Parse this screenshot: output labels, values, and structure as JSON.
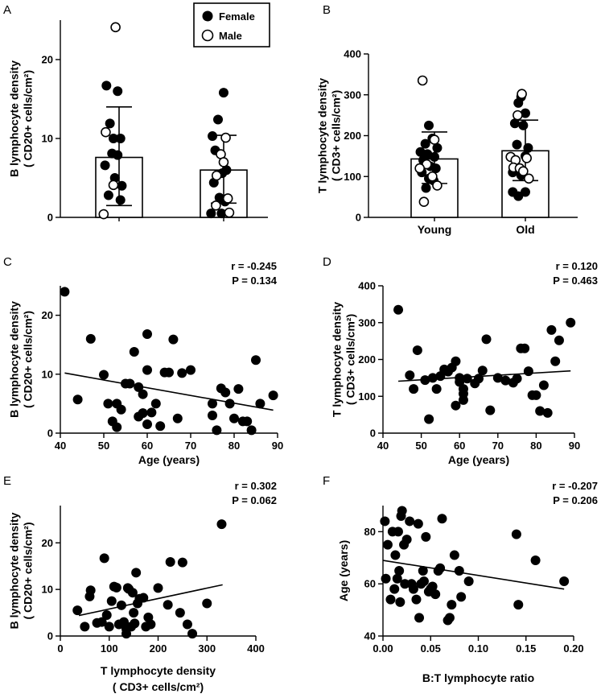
{
  "legend": {
    "female": "Female",
    "male": "Male"
  },
  "chart_data": [
    {
      "panel": "A",
      "type": "bar",
      "ylabel": [
        "B lymphocyte density",
        "( CD20+ cells/cm²)"
      ],
      "ylim": [
        0,
        25
      ],
      "yticks": [
        0,
        10,
        20
      ],
      "categories": [
        "",
        ""
      ],
      "means": [
        7.6,
        6.0
      ],
      "sd": [
        [
          1.5,
          14.0
        ],
        [
          1.8,
          10.4
        ]
      ],
      "female_points": [
        [
          [
            0.4,
            16.7
          ],
          [
            0.45,
            11.9
          ],
          [
            0.5,
            10.0
          ],
          [
            0.56,
            16.0
          ],
          [
            0.6,
            10.0
          ],
          [
            0.48,
            8.1
          ],
          [
            0.56,
            7.9
          ],
          [
            0.38,
            6.6
          ],
          [
            0.52,
            5.0
          ],
          [
            0.62,
            4.0
          ],
          [
            0.43,
            2.8
          ],
          [
            0.6,
            2.2
          ]
        ],
        [
          [
            0.42,
            10.3
          ],
          [
            0.5,
            12.4
          ],
          [
            0.58,
            15.8
          ],
          [
            0.46,
            8.5
          ],
          [
            0.56,
            5.6
          ],
          [
            0.62,
            6.0
          ],
          [
            0.44,
            4.4
          ],
          [
            0.52,
            2.5
          ],
          [
            0.6,
            2.0
          ],
          [
            0.4,
            0.5
          ],
          [
            0.55,
            0.5
          ]
        ]
      ],
      "male_points": [
        [
          [
            0.53,
            24.1
          ],
          [
            0.39,
            10.8
          ],
          [
            0.5,
            4.1
          ],
          [
            0.36,
            0.4
          ]
        ],
        [
          [
            0.61,
            10.1
          ],
          [
            0.54,
            8.0
          ],
          [
            0.58,
            7.0
          ],
          [
            0.48,
            5.3
          ],
          [
            0.64,
            2.4
          ],
          [
            0.47,
            1.5
          ],
          [
            0.66,
            0.6
          ]
        ]
      ]
    },
    {
      "panel": "B",
      "type": "bar",
      "ylabel": [
        "T lymphocyte density",
        "( CD3+ cells/cm²)"
      ],
      "ylim": [
        0,
        400
      ],
      "yticks": [
        0,
        100,
        200,
        300,
        400
      ],
      "categories": [
        "Young",
        "Old"
      ],
      "means": [
        143,
        163
      ],
      "sd": [
        [
          83,
          209
        ],
        [
          90,
          238
        ]
      ],
      "female_points": [
        [
          [
            0.5,
            225
          ],
          [
            0.45,
            180
          ],
          [
            0.55,
            193
          ],
          [
            0.62,
            170
          ],
          [
            0.38,
            160
          ],
          [
            0.48,
            155
          ],
          [
            0.58,
            148
          ],
          [
            0.42,
            140
          ],
          [
            0.52,
            125
          ],
          [
            0.6,
            120
          ],
          [
            0.4,
            110
          ],
          [
            0.5,
            95
          ],
          [
            0.57,
            90
          ],
          [
            0.46,
            72
          ]
        ],
        [
          [
            0.52,
            295
          ],
          [
            0.48,
            280
          ],
          [
            0.58,
            255
          ],
          [
            0.43,
            230
          ],
          [
            0.55,
            225
          ],
          [
            0.62,
            170
          ],
          [
            0.46,
            178
          ],
          [
            0.58,
            150
          ],
          [
            0.4,
            110
          ],
          [
            0.52,
            103
          ],
          [
            0.4,
            62
          ],
          [
            0.58,
            62
          ],
          [
            0.48,
            52
          ]
        ]
      ],
      "male_points": [
        [
          [
            0.41,
            335
          ],
          [
            0.58,
            190
          ],
          [
            0.47,
            130
          ],
          [
            0.37,
            120
          ],
          [
            0.55,
            100
          ],
          [
            0.62,
            78
          ],
          [
            0.43,
            38
          ]
        ],
        [
          [
            0.53,
            302
          ],
          [
            0.47,
            250
          ],
          [
            0.37,
            148
          ],
          [
            0.44,
            140
          ],
          [
            0.6,
            145
          ],
          [
            0.41,
            122
          ],
          [
            0.5,
            120
          ],
          [
            0.55,
            113
          ],
          [
            0.63,
            95
          ]
        ]
      ]
    },
    {
      "panel": "C",
      "type": "scatter",
      "xlabel": "Age (years)",
      "ylabel": [
        "B lymphocyte density",
        "( CD20+ cells/cm²)"
      ],
      "xlim": [
        40,
        90
      ],
      "ylim": [
        0,
        25
      ],
      "xticks": [
        40,
        50,
        60,
        70,
        80,
        90
      ],
      "yticks": [
        0,
        10,
        20
      ],
      "stats": {
        "r": "r = -0.245",
        "p": "P = 0.134"
      },
      "fit": [
        [
          41,
          10.2
        ],
        [
          89,
          3.9
        ]
      ],
      "points": [
        [
          41,
          24
        ],
        [
          44,
          5.7
        ],
        [
          47,
          16
        ],
        [
          50,
          9.9
        ],
        [
          51,
          5
        ],
        [
          52,
          2
        ],
        [
          53,
          5
        ],
        [
          53,
          1
        ],
        [
          54,
          4
        ],
        [
          55,
          8.4
        ],
        [
          56,
          8.4
        ],
        [
          57,
          13.8
        ],
        [
          58,
          7.8
        ],
        [
          58,
          2.8
        ],
        [
          59,
          6.6
        ],
        [
          59,
          3.4
        ],
        [
          60,
          16.8
        ],
        [
          60,
          10.7
        ],
        [
          60,
          1.5
        ],
        [
          61,
          3.5
        ],
        [
          62,
          5
        ],
        [
          63,
          1.2
        ],
        [
          64,
          10.3
        ],
        [
          65,
          10.3
        ],
        [
          66,
          15.9
        ],
        [
          67,
          2.5
        ],
        [
          68,
          10.2
        ],
        [
          70,
          10.7
        ],
        [
          75,
          5
        ],
        [
          75,
          3
        ],
        [
          76,
          0.5
        ],
        [
          77,
          7.6
        ],
        [
          78,
          6.9
        ],
        [
          79,
          5
        ],
        [
          80,
          2.5
        ],
        [
          81,
          7.5
        ],
        [
          82,
          2
        ],
        [
          83,
          2
        ],
        [
          84,
          0.5
        ],
        [
          85,
          12.4
        ],
        [
          86,
          5
        ],
        [
          89,
          6.4
        ]
      ]
    },
    {
      "panel": "D",
      "type": "scatter",
      "xlabel": "Age (years)",
      "ylabel": [
        "T lymphocyte density",
        "( CD3+ cells/cm²)"
      ],
      "xlim": [
        40,
        90
      ],
      "ylim": [
        0,
        400
      ],
      "xticks": [
        40,
        50,
        60,
        70,
        80,
        90
      ],
      "yticks": [
        0,
        100,
        200,
        300,
        400
      ],
      "stats": {
        "r": "r = 0.120",
        "p": "P = 0.463"
      },
      "fit": [
        [
          44,
          141
        ],
        [
          89,
          169
        ]
      ],
      "points": [
        [
          44,
          335
        ],
        [
          47,
          157
        ],
        [
          48,
          120
        ],
        [
          49,
          225
        ],
        [
          51,
          144
        ],
        [
          52,
          38
        ],
        [
          53,
          150
        ],
        [
          54,
          120
        ],
        [
          55,
          155
        ],
        [
          56,
          173
        ],
        [
          57,
          167
        ],
        [
          58,
          178
        ],
        [
          59,
          195
        ],
        [
          59,
          75
        ],
        [
          60,
          150
        ],
        [
          60,
          139
        ],
        [
          61,
          120
        ],
        [
          61,
          107
        ],
        [
          61,
          90
        ],
        [
          62,
          148
        ],
        [
          64,
          135
        ],
        [
          65,
          148
        ],
        [
          66,
          170
        ],
        [
          67,
          255
        ],
        [
          68,
          62
        ],
        [
          70,
          150
        ],
        [
          72,
          143
        ],
        [
          74,
          137
        ],
        [
          75,
          148
        ],
        [
          76,
          230
        ],
        [
          77,
          230
        ],
        [
          78,
          168
        ],
        [
          79,
          103
        ],
        [
          80,
          103
        ],
        [
          81,
          60
        ],
        [
          82,
          130
        ],
        [
          83,
          55
        ],
        [
          84,
          280
        ],
        [
          85,
          195
        ],
        [
          86,
          252
        ],
        [
          89,
          300
        ]
      ]
    },
    {
      "panel": "E",
      "type": "scatter",
      "xlabel": [
        "T lymphocyte density",
        "( CD3+ cells/cm²)"
      ],
      "ylabel": [
        "B lymphocyte density",
        "( CD20+ cells/cm²)"
      ],
      "xlim": [
        0,
        400
      ],
      "ylim": [
        0,
        28
      ],
      "xticks": [
        0,
        100,
        200,
        300,
        400
      ],
      "yticks": [
        0,
        10,
        20
      ],
      "stats": {
        "r": "r = 0.302",
        "p": "P = 0.062"
      },
      "fit": [
        [
          38,
          4.4
        ],
        [
          332,
          11.0
        ]
      ],
      "points": [
        [
          35,
          5.5
        ],
        [
          50,
          2
        ],
        [
          60,
          8.5
        ],
        [
          62,
          9.8
        ],
        [
          75,
          2.8
        ],
        [
          85,
          3
        ],
        [
          90,
          16.7
        ],
        [
          95,
          4.5
        ],
        [
          100,
          2
        ],
        [
          105,
          7.5
        ],
        [
          110,
          10.6
        ],
        [
          115,
          10.4
        ],
        [
          120,
          2.5
        ],
        [
          125,
          6.6
        ],
        [
          130,
          3
        ],
        [
          135,
          1.5
        ],
        [
          135,
          0.5
        ],
        [
          138,
          10.3
        ],
        [
          140,
          10.1
        ],
        [
          145,
          2
        ],
        [
          148,
          9.3
        ],
        [
          150,
          5
        ],
        [
          152,
          2.7
        ],
        [
          155,
          13.6
        ],
        [
          158,
          7
        ],
        [
          162,
          8
        ],
        [
          170,
          8.2
        ],
        [
          175,
          2
        ],
        [
          180,
          4
        ],
        [
          185,
          2.5
        ],
        [
          200,
          10.3
        ],
        [
          220,
          6.7
        ],
        [
          225,
          15.9
        ],
        [
          245,
          5
        ],
        [
          250,
          15.8
        ],
        [
          260,
          2.5
        ],
        [
          270,
          0.5
        ],
        [
          300,
          7
        ],
        [
          330,
          24
        ]
      ]
    },
    {
      "panel": "F",
      "type": "scatter",
      "xlabel": "B:T lymphocyte ratio",
      "ylabel": [
        "Age (years)"
      ],
      "xlim": [
        0,
        0.2
      ],
      "ylim": [
        40,
        90
      ],
      "xticks": [
        0.0,
        0.05,
        0.1,
        0.15,
        0.2
      ],
      "yticks": [
        40,
        60,
        80
      ],
      "stats": {
        "r": "r = -0.207",
        "p": "P = 0.206"
      },
      "fit": [
        [
          0.0,
          69
        ],
        [
          0.19,
          58
        ]
      ],
      "points": [
        [
          0.002,
          84
        ],
        [
          0.003,
          62
        ],
        [
          0.005,
          75
        ],
        [
          0.008,
          54
        ],
        [
          0.01,
          80
        ],
        [
          0.012,
          58
        ],
        [
          0.013,
          71
        ],
        [
          0.015,
          62
        ],
        [
          0.016,
          80
        ],
        [
          0.017,
          65
        ],
        [
          0.018,
          53
        ],
        [
          0.019,
          86
        ],
        [
          0.02,
          88
        ],
        [
          0.022,
          75
        ],
        [
          0.023,
          60
        ],
        [
          0.025,
          77
        ],
        [
          0.028,
          84
        ],
        [
          0.03,
          60
        ],
        [
          0.032,
          58
        ],
        [
          0.035,
          54
        ],
        [
          0.037,
          83
        ],
        [
          0.038,
          47
        ],
        [
          0.04,
          60
        ],
        [
          0.042,
          65
        ],
        [
          0.043,
          61
        ],
        [
          0.045,
          78
        ],
        [
          0.048,
          57
        ],
        [
          0.05,
          58
        ],
        [
          0.052,
          59
        ],
        [
          0.055,
          56
        ],
        [
          0.058,
          65
        ],
        [
          0.06,
          66
        ],
        [
          0.062,
          85
        ],
        [
          0.068,
          46
        ],
        [
          0.07,
          47
        ],
        [
          0.072,
          52
        ],
        [
          0.075,
          71
        ],
        [
          0.08,
          65
        ],
        [
          0.082,
          55
        ],
        [
          0.09,
          61
        ],
        [
          0.14,
          79
        ],
        [
          0.142,
          52
        ],
        [
          0.16,
          69
        ],
        [
          0.19,
          61
        ]
      ]
    }
  ]
}
